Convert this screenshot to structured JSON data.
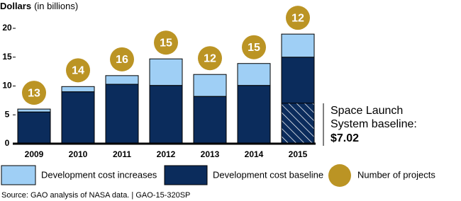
{
  "chart_data": {
    "type": "bar",
    "y_label": "Dollars",
    "y_unit": "(in billions)",
    "categories": [
      "2009",
      "2010",
      "2011",
      "2012",
      "2013",
      "2014",
      "2015"
    ],
    "series": [
      {
        "name": "Development cost baseline",
        "color": "#0b2c5c",
        "values": [
          5.5,
          9.0,
          10.3,
          10.1,
          8.2,
          10.1,
          15.0
        ]
      },
      {
        "name": "Development cost increases",
        "color": "#9fcff5",
        "values": [
          0.5,
          0.9,
          1.5,
          4.6,
          3.8,
          3.8,
          4.0
        ]
      }
    ],
    "projects": {
      "name": "Number of projects",
      "color": "#bb9424",
      "values": [
        13,
        14,
        16,
        15,
        12,
        15,
        12
      ]
    },
    "annotation": {
      "lines": [
        "Space Launch",
        "System baseline:"
      ],
      "value": 7.02,
      "label": "$7.02"
    },
    "ylim": [
      0,
      20
    ],
    "yticks": [
      0,
      5,
      10,
      15,
      20
    ],
    "source": "Source: GAO analysis of NASA data.  |  GAO-15-320SP"
  }
}
